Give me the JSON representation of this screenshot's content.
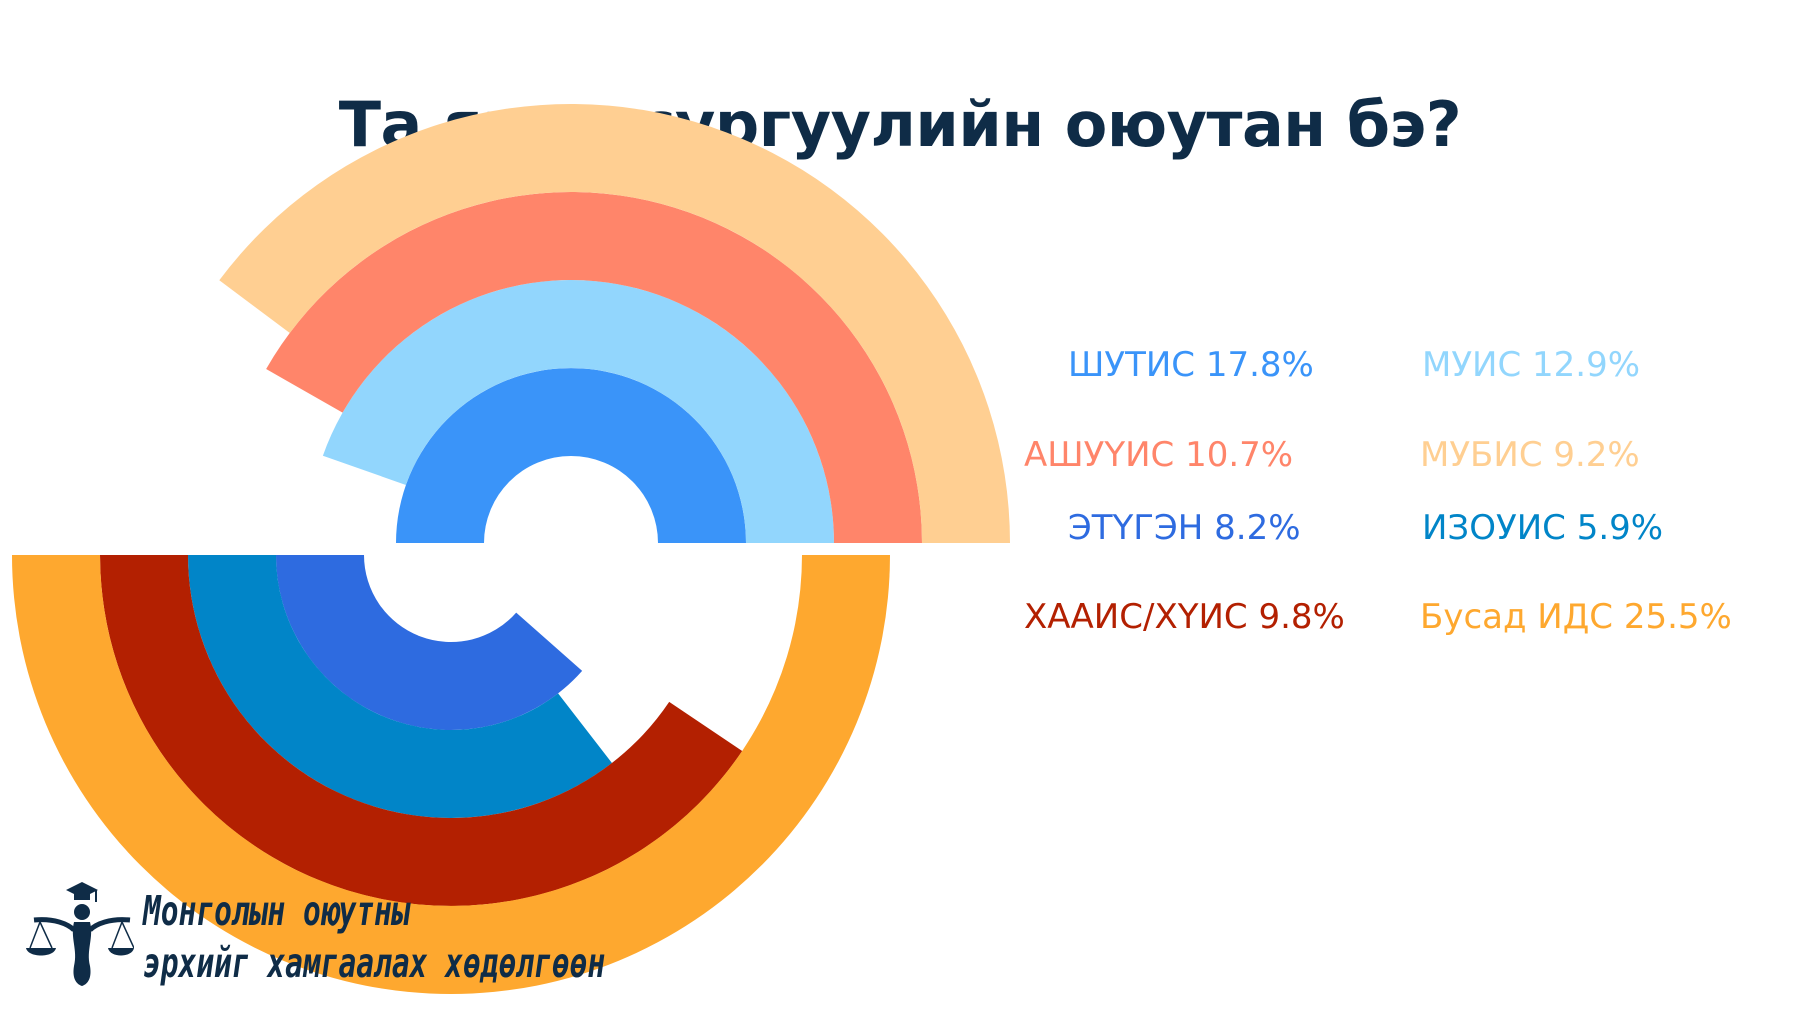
{
  "title": "Та ямар сургуулийн оюутан бэ?",
  "chart_data": {
    "type": "pie",
    "variant": "radial-semicircle-rings",
    "series": [
      {
        "label": "ШУТИС 17.8%",
        "name": "ШУТИС",
        "value": 17.8,
        "color": "#3a94f9"
      },
      {
        "label": "МУИС 12.9%",
        "name": "МУИС",
        "value": 12.9,
        "color": "#92d6fd"
      },
      {
        "label": "АШУҮИС 10.7%",
        "name": "АШУҮИС",
        "value": 10.7,
        "color": "#ff856a"
      },
      {
        "label": "МУБИС 9.2%",
        "name": "МУБИС",
        "value": 9.2,
        "color": "#ffcf92"
      },
      {
        "label": "ЭТҮГЭН 8.2%",
        "name": "ЭТҮГЭН",
        "value": 8.2,
        "color": "#2e6be0"
      },
      {
        "label": "ИЗОУИС 5.9%",
        "name": "ИЗОУИС",
        "value": 5.9,
        "color": "#0185c8"
      },
      {
        "label": "ХААИС/ХҮИС 9.8%",
        "name": "ХААИС/ХҮИС",
        "value": 9.8,
        "color": "#b32001"
      },
      {
        "label": "Бусад ИДС 25.5%",
        "name": "Бусад ИДС",
        "value": 25.5,
        "color": "#fea82f"
      }
    ],
    "legend_placement": "right",
    "grid": false
  },
  "organization": {
    "line1": "Монголын оюутны",
    "line2": "эрхийг хамгаалах хөдөлгөөн"
  }
}
